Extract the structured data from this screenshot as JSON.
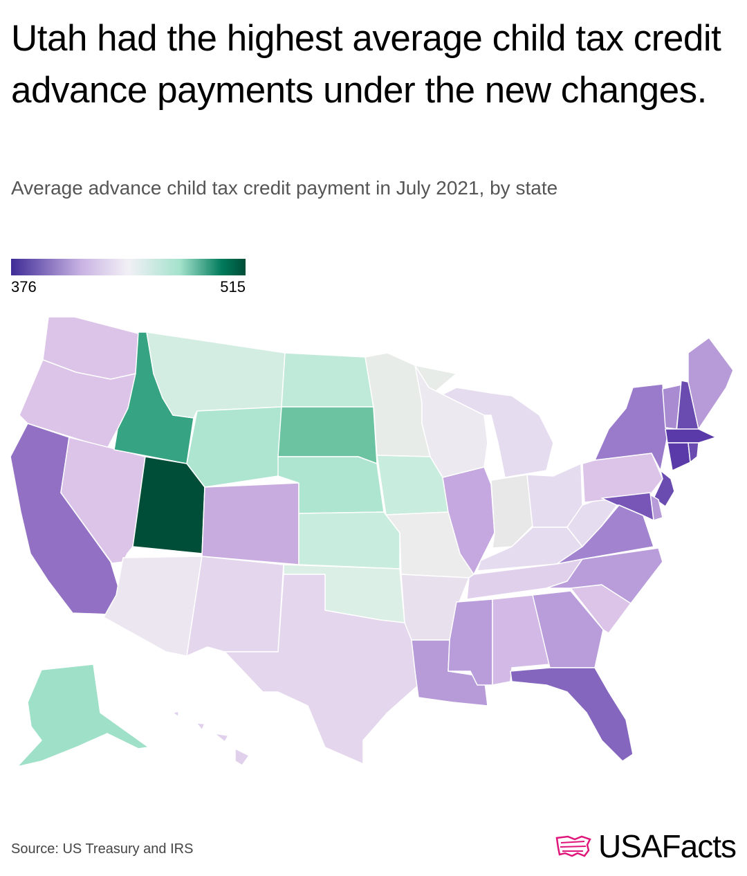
{
  "title": "Utah had the highest average child tax credit advance payments under the new changes.",
  "subtitle": "Average advance child tax credit payment in July 2021, by state",
  "legend": {
    "min_label": "376",
    "max_label": "515",
    "min_color": "#3e2c96",
    "max_color": "#004d38"
  },
  "source": "Source: US Treasury and IRS",
  "brand": {
    "name": "USAFacts",
    "logo_icon": "us-flag-map-icon",
    "logo_color": "#e0157a"
  },
  "states": [
    {
      "abbr": "WA",
      "fill": "#dcc4e8"
    },
    {
      "abbr": "OR",
      "fill": "#dcc4e8"
    },
    {
      "abbr": "CA",
      "fill": "#9271c4"
    },
    {
      "abbr": "NV",
      "fill": "#dcc4e8"
    },
    {
      "abbr": "ID",
      "fill": "#36a382"
    },
    {
      "abbr": "MT",
      "fill": "#d3ede2"
    },
    {
      "abbr": "WY",
      "fill": "#ade5d0"
    },
    {
      "abbr": "UT",
      "fill": "#004d38"
    },
    {
      "abbr": "AZ",
      "fill": "#ece6f0"
    },
    {
      "abbr": "CO",
      "fill": "#c8ace0"
    },
    {
      "abbr": "NM",
      "fill": "#e4d6ec"
    },
    {
      "abbr": "ND",
      "fill": "#bfe9d8"
    },
    {
      "abbr": "SD",
      "fill": "#6cc3a1"
    },
    {
      "abbr": "NE",
      "fill": "#ade5d0"
    },
    {
      "abbr": "KS",
      "fill": "#c8ecdd"
    },
    {
      "abbr": "OK",
      "fill": "#dcefe6"
    },
    {
      "abbr": "TX",
      "fill": "#e4d6ec"
    },
    {
      "abbr": "MN",
      "fill": "#e8ece9"
    },
    {
      "abbr": "IA",
      "fill": "#c8ecdd"
    },
    {
      "abbr": "MO",
      "fill": "#ececec"
    },
    {
      "abbr": "AR",
      "fill": "#e9e0ee"
    },
    {
      "abbr": "LA",
      "fill": "#b79ad8"
    },
    {
      "abbr": "WI",
      "fill": "#eceaf0"
    },
    {
      "abbr": "IL",
      "fill": "#c5a8e0"
    },
    {
      "abbr": "MI",
      "fill": "#e6dcef"
    },
    {
      "abbr": "IN",
      "fill": "#e8e8e8"
    },
    {
      "abbr": "OH",
      "fill": "#e6dcef"
    },
    {
      "abbr": "KY",
      "fill": "#e6dcef"
    },
    {
      "abbr": "TN",
      "fill": "#e0d0ec"
    },
    {
      "abbr": "MS",
      "fill": "#b99ddb"
    },
    {
      "abbr": "AL",
      "fill": "#d3b9e6"
    },
    {
      "abbr": "GA",
      "fill": "#b99ddb"
    },
    {
      "abbr": "FL",
      "fill": "#8466bf"
    },
    {
      "abbr": "SC",
      "fill": "#dcc4e8"
    },
    {
      "abbr": "NC",
      "fill": "#b99ddb"
    },
    {
      "abbr": "VA",
      "fill": "#a283cf"
    },
    {
      "abbr": "WV",
      "fill": "#e6dcef"
    },
    {
      "abbr": "PA",
      "fill": "#dcc4e8"
    },
    {
      "abbr": "NY",
      "fill": "#9a7bcb"
    },
    {
      "abbr": "VT",
      "fill": "#a98bd2"
    },
    {
      "abbr": "NH",
      "fill": "#6a4bb0"
    },
    {
      "abbr": "ME",
      "fill": "#b79ad8"
    },
    {
      "abbr": "MA",
      "fill": "#5a3aa8"
    },
    {
      "abbr": "CT",
      "fill": "#5a3aa8"
    },
    {
      "abbr": "RI",
      "fill": "#6a4bb0"
    },
    {
      "abbr": "NJ",
      "fill": "#6a4bb0"
    },
    {
      "abbr": "DE",
      "fill": "#b79ad8"
    },
    {
      "abbr": "MD",
      "fill": "#7756b8"
    },
    {
      "abbr": "AK",
      "fill": "#9fe0c8"
    },
    {
      "abbr": "HI",
      "fill": "#e0d0ec"
    }
  ]
}
